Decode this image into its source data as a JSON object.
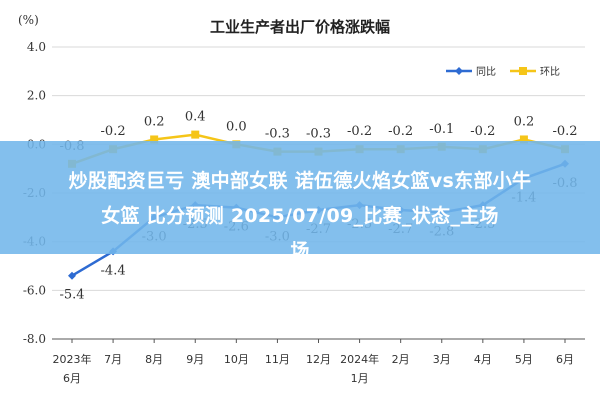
{
  "chart_data": {
    "type": "line",
    "title": "工业生产者出厂价格涨跌幅",
    "unit": "(%)",
    "ylim": [
      -8.0,
      4.0
    ],
    "yticks": [
      "4.0",
      "2.0",
      "0.0",
      "-2.0",
      "-4.0",
      "-6.0",
      "-8.0"
    ],
    "categories": [
      "2023年|6月",
      "7月",
      "8月",
      "9月",
      "10月",
      "11月",
      "12月",
      "2024年|1月",
      "2月",
      "3月",
      "4月",
      "5月",
      "6月"
    ],
    "series": [
      {
        "name": "同比",
        "color": "#2e6bd2",
        "values": [
          -5.4,
          -4.4,
          -3.0,
          -2.5,
          -2.6,
          -3.0,
          -2.7,
          -2.5,
          -2.7,
          -2.8,
          -2.5,
          -1.4,
          -0.8
        ],
        "labels": [
          "-5.4",
          "-4.4",
          "-3.0",
          "-2.5",
          "-2.6",
          "-3.0",
          "-2.7",
          "-2.5",
          "-2.7",
          "-2.8",
          "-2.5",
          "-1.4",
          "-0.8"
        ]
      },
      {
        "name": "环比",
        "color": "#f5c518",
        "values": [
          -0.8,
          -0.2,
          0.2,
          0.4,
          0.0,
          -0.3,
          -0.3,
          -0.2,
          -0.2,
          -0.1,
          -0.2,
          0.2,
          -0.2
        ],
        "labels": [
          "-0.8",
          "-0.2",
          "0.2",
          "0.4",
          "0.0",
          "-0.3",
          "-0.3",
          "-0.2",
          "-0.2",
          "-0.1",
          "-0.2",
          "0.2",
          "-0.2"
        ]
      }
    ],
    "grid": true,
    "legend": "top-right"
  },
  "overlay": {
    "line1": "炒股配资巨亏 澳中部女联 诺伍德火焰女篮vs东部小牛",
    "line2": "女篮 比分预测 2025/07/09_比赛_状态_主场",
    "line3": "场"
  }
}
